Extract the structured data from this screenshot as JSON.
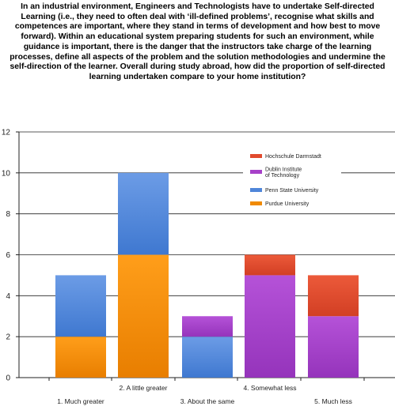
{
  "chart_data": {
    "type": "bar",
    "stacked": true,
    "title": "In an industrial environment, Engineers and Technologists have to undertake Self-directed Learning (i.e., they need to often deal with ‘ill-defined problems’, recognise what skills and competences are important, where they stand in terms of development and  how best to move forward). Within an educational system preparing students for such an environment, while guidance is important, there is the danger that the instructors take charge of the learning processes, define all aspects of the problem and the solution methodologies and undermine the self-direction of the learner. Overall during study abroad, how did   the proportion of self-directed learning undertaken compare to your home institution?",
    "categories": [
      "1. Much greater",
      "2. A little greater",
      "3. About the same",
      "4. Somewhat less",
      "5. Much less"
    ],
    "series": [
      {
        "name": "Purdue University",
        "color": "#f08a00",
        "values": [
          2,
          6,
          0,
          0,
          0
        ]
      },
      {
        "name": "Penn State University",
        "color": "#4f86d9",
        "values": [
          3,
          4,
          2,
          0,
          0
        ]
      },
      {
        "name": "Dublin Institute of Technology",
        "color": "#a640c8",
        "values": [
          0,
          0,
          1,
          5,
          3
        ]
      },
      {
        "name": "Hochschule Darmstadt",
        "color": "#e14a2e",
        "values": [
          0,
          0,
          0,
          1,
          2
        ]
      }
    ],
    "legend_order": [
      "Hochschule Darmstadt",
      "Dublin Institute of Technology",
      "Penn State University",
      "Purdue University"
    ],
    "yticks": [
      "0",
      "2",
      "4",
      "6",
      "8",
      "10",
      "12"
    ],
    "ylim": [
      0,
      12
    ],
    "grid": true,
    "legend_position": "top-right",
    "xlabel": "",
    "ylabel": ""
  }
}
